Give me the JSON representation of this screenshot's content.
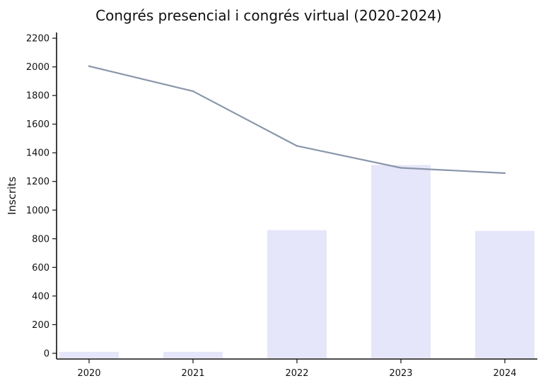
{
  "chart_data": {
    "type": "bar+line",
    "title": "Congrés presencial i congrés virtual (2020-2024)",
    "xlabel": "",
    "ylabel": "Inscrits",
    "categories": [
      "2020",
      "2021",
      "2022",
      "2023",
      "2024"
    ],
    "ylim": [
      -40,
      2240
    ],
    "yticks": [
      0,
      200,
      400,
      600,
      800,
      1000,
      1200,
      1400,
      1600,
      1800,
      2000,
      2200
    ],
    "series": [
      {
        "type": "bar",
        "values": [
          0,
          0,
          860,
          1315,
          855
        ],
        "color": "#e6e6fa"
      },
      {
        "type": "line",
        "values": [
          2005,
          1830,
          1448,
          1295,
          1258
        ],
        "color": "#8a96ab"
      }
    ],
    "grid": false,
    "legend": "none"
  }
}
